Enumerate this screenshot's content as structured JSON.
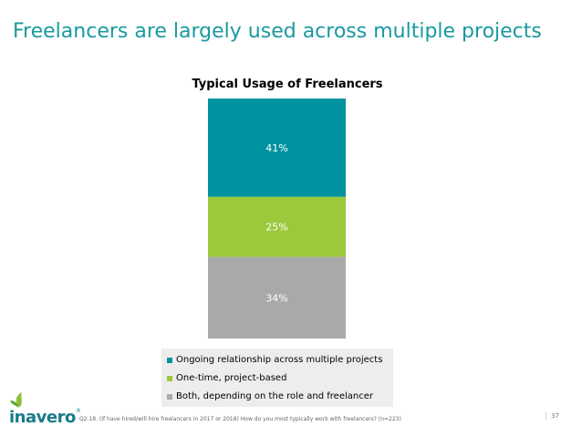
{
  "slide": {
    "title": "Freelancers are largely used across multiple projects",
    "footnote": "Q2.18. (If have hired/will hire freelancers in 2017 or 2018) How do you most typically work with freelancers? (n=223)",
    "page_number": "37",
    "logo_text": "inavero",
    "logo_tm": "®"
  },
  "colors": {
    "title": "#1a9aa0",
    "ongoing": "#00929e",
    "one_time": "#9bc93b",
    "both": "#a9a9a9"
  },
  "chart_data": {
    "type": "bar",
    "stacked": true,
    "title": "Typical Usage of Freelancers",
    "categories": [
      ""
    ],
    "series": [
      {
        "name": "Ongoing relationship across multiple projects",
        "values": [
          41
        ],
        "label": "41%",
        "color": "#00929e"
      },
      {
        "name": "One-time, project-based",
        "values": [
          25
        ],
        "label": "25%",
        "color": "#9bc93b"
      },
      {
        "name": "Both, depending on the role and freelancer",
        "values": [
          34
        ],
        "label": "34%",
        "color": "#a9a9a9"
      }
    ],
    "ylim": [
      0,
      100
    ],
    "legend": "bottom",
    "grid": false
  }
}
